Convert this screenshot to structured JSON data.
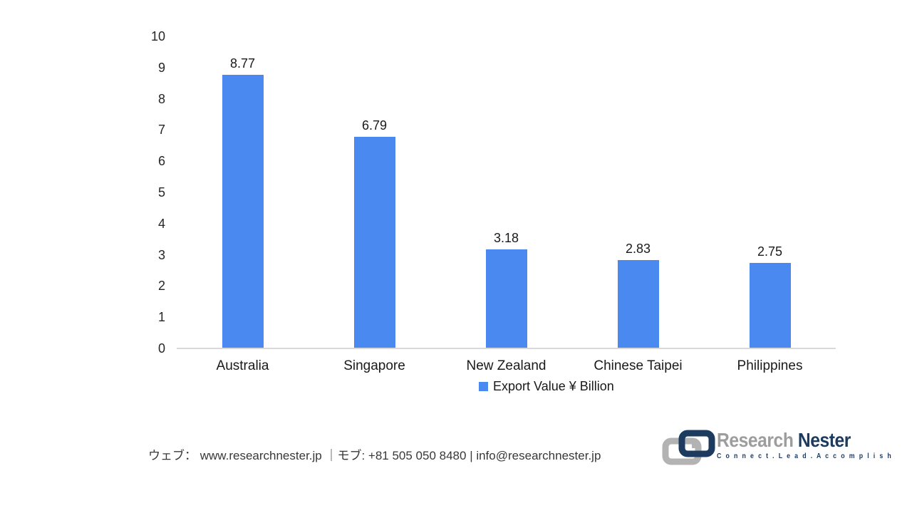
{
  "chart_data": {
    "type": "bar",
    "categories": [
      "Australia",
      "Singapore",
      "New Zealand",
      "Chinese Taipei",
      "Philippines"
    ],
    "values": [
      8.77,
      6.79,
      3.18,
      2.83,
      2.75
    ],
    "value_labels": [
      "8.77",
      "6.79",
      "3.18",
      "2.83",
      "2.75"
    ],
    "series_name": "Export Value ¥ Billion",
    "title": "",
    "xlabel": "",
    "ylabel": "",
    "ylim": [
      0,
      10
    ],
    "yticks": [
      0,
      1,
      2,
      3,
      4,
      5,
      6,
      7,
      8,
      9,
      10
    ],
    "grid": false,
    "legend_position": "bottom-center",
    "bar_color": "#4a8af0",
    "axis_line_color": "#d9d9d9"
  },
  "legend": {
    "label": "Export Value ¥ Billion",
    "swatch_color": "#4a8af0"
  },
  "footer": {
    "contact_line": "ウェブ： www.researchnester.jp ｜モブ: +81 505 050 8480 | info@researchnester.jp"
  },
  "logo": {
    "name_part1": "Research ",
    "name_part2": "Nester",
    "tagline": "C o n n e c t .   L e a d .   A c c o m p l i s h",
    "colors": {
      "gray": "#9d9d9d",
      "navy": "#1d3a5f",
      "icon_gray": "#b3b3b3"
    }
  }
}
